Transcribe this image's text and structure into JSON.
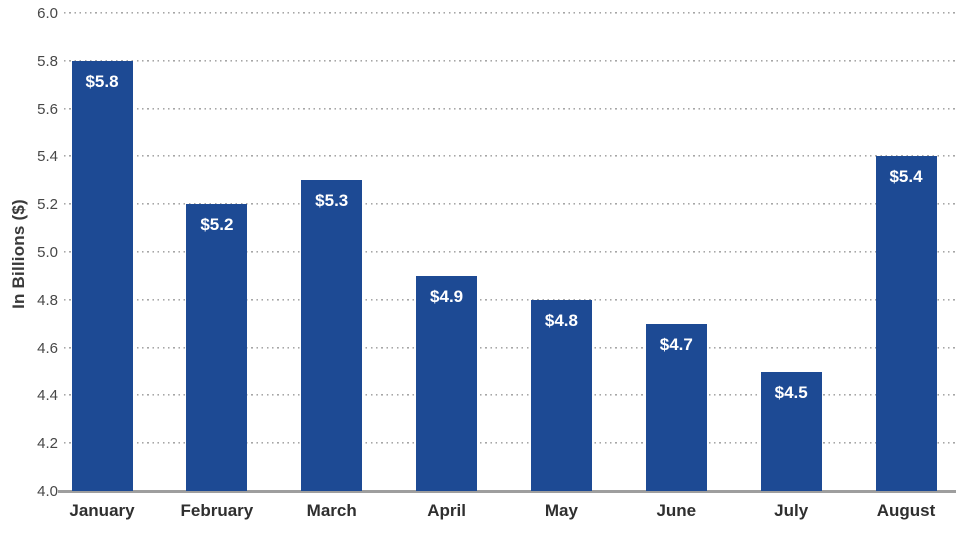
{
  "chart_data": {
    "type": "bar",
    "title": "",
    "categories": [
      "January",
      "February",
      "March",
      "April",
      "May",
      "June",
      "July",
      "August"
    ],
    "values": [
      5.8,
      5.2,
      5.3,
      4.9,
      4.8,
      4.7,
      4.5,
      5.4
    ],
    "bar_labels": [
      "$5.8",
      "$5.2",
      "$5.3",
      "$4.9",
      "$4.8",
      "$4.7",
      "$4.5",
      "$5.4"
    ],
    "xlabel": "",
    "ylabel": "In Billions ($)",
    "ylim": [
      4.0,
      6.0
    ],
    "ytick_step": 0.2,
    "yticks": [
      "6.0",
      "5.8",
      "5.6",
      "5.4",
      "5.2",
      "5.0",
      "4.8",
      "4.6",
      "4.4",
      "4.2",
      "4.0"
    ],
    "grid": "horizontal-dotted",
    "legend": "none",
    "colors": {
      "bar": "#1d4a94",
      "bar_value_text": "#ffffff",
      "gridline": "#a6a6a6",
      "axis_line": "#9e9e9e",
      "tick_text": "#474747",
      "category_text": "#2f2f2f",
      "axis_title_text": "#3a3a3a",
      "background": "#ffffff"
    }
  }
}
